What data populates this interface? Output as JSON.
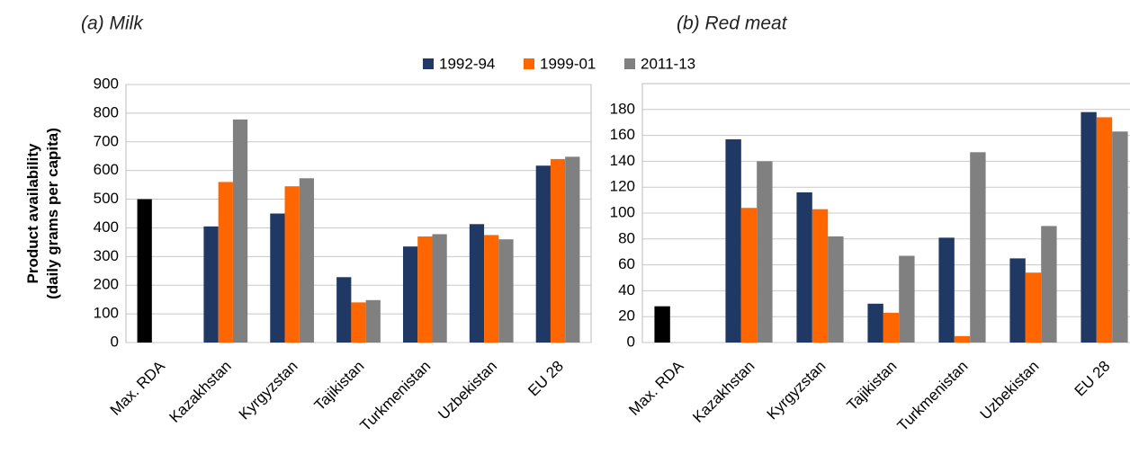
{
  "chart_data": [
    {
      "type": "bar",
      "title": "(a) Milk",
      "ylabel": [
        "Product  availability",
        "(daily grams per capita)"
      ],
      "categories": [
        "Max. RDA",
        "Kazakhstan",
        "Kyrgyzstan",
        "Tajikistan",
        "Turkmenistan",
        "Uzbekistan",
        "EU 28"
      ],
      "series": [
        {
          "name": "1992-94",
          "color": "#1f3864",
          "point_colors": [
            "#000000",
            null,
            null,
            null,
            null,
            null,
            null
          ],
          "values": [
            500,
            405,
            450,
            228,
            335,
            413,
            617
          ]
        },
        {
          "name": "1999-01",
          "color": "#ff6600",
          "values": [
            null,
            560,
            545,
            140,
            370,
            375,
            640
          ]
        },
        {
          "name": "2011-13",
          "color": "#808080",
          "values": [
            null,
            778,
            573,
            148,
            378,
            360,
            648
          ]
        }
      ],
      "ylim": [
        0,
        900
      ],
      "yticks": [
        0,
        100,
        200,
        300,
        400,
        500,
        600,
        700,
        800,
        900
      ],
      "grid": true,
      "legend": "top"
    },
    {
      "type": "bar",
      "title": "(b) Red meat",
      "categories": [
        "Max. RDA",
        "Kazakhstan",
        "Kyrgyzstan",
        "Tajikistan",
        "Turkmenistan",
        "Uzbekistan",
        "EU 28"
      ],
      "series": [
        {
          "name": "1992-94",
          "color": "#1f3864",
          "point_colors": [
            "#000000",
            null,
            null,
            null,
            null,
            null,
            null
          ],
          "values": [
            28,
            157,
            116,
            30,
            81,
            65,
            178
          ]
        },
        {
          "name": "1999-01",
          "color": "#ff6600",
          "values": [
            null,
            104,
            103,
            23,
            5,
            54,
            174
          ]
        },
        {
          "name": "2011-13",
          "color": "#808080",
          "values": [
            null,
            140,
            82,
            67,
            147,
            90,
            163
          ]
        }
      ],
      "ylim": [
        0,
        200
      ],
      "yticks": [
        0,
        20,
        40,
        60,
        80,
        100,
        120,
        140,
        160,
        180
      ],
      "grid": true
    }
  ]
}
